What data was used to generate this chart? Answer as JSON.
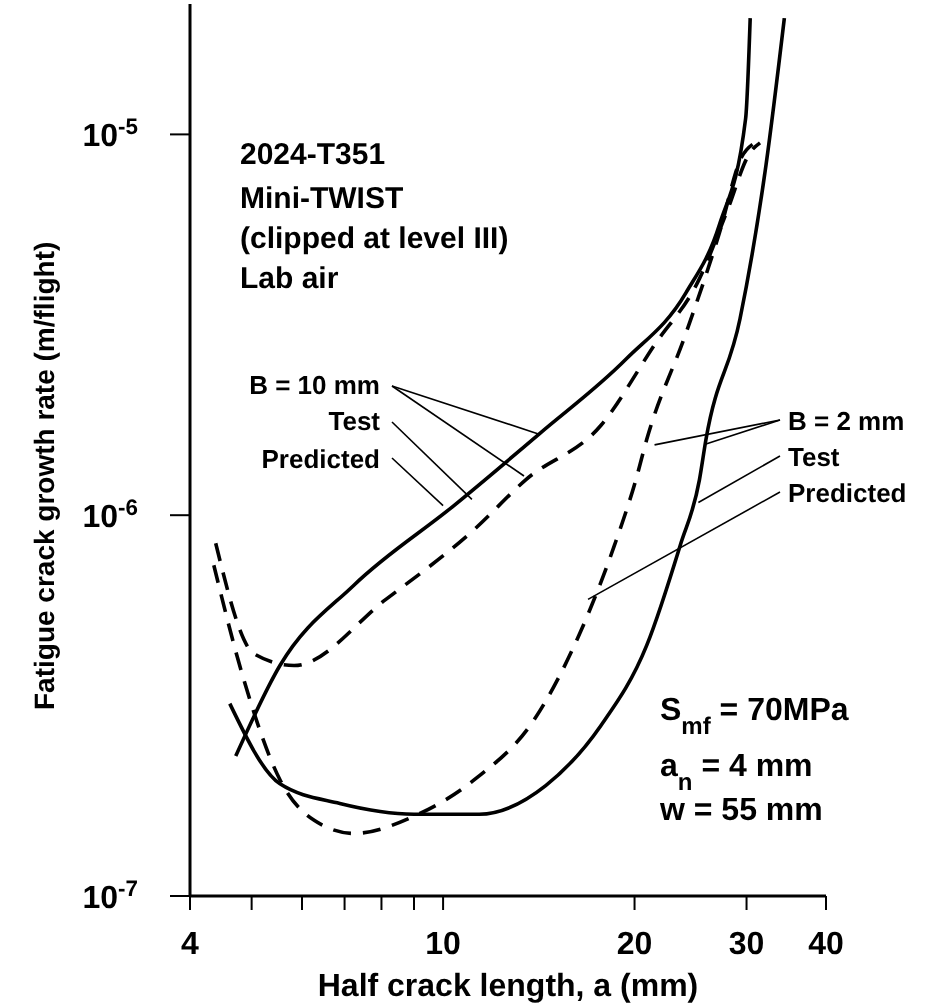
{
  "chart_data": {
    "type": "line",
    "xlabel": "Half crack length, a (mm)",
    "ylabel": "Fatigue crack growth rate (m/flight)",
    "log": "xy",
    "xlim": [
      4,
      40
    ],
    "ylim": [
      1e-07,
      2.2e-05
    ],
    "xticks": [
      4,
      {
        "value": 5,
        "label": null
      },
      {
        "value": 6,
        "label": null
      },
      {
        "value": 7,
        "label": null
      },
      {
        "value": 8,
        "label": null
      },
      {
        "value": 9,
        "label": null
      },
      10,
      20,
      30,
      40
    ],
    "yticks": [
      {
        "value": 1e-07,
        "label": "10$^{-7}$"
      },
      {
        "value": 1e-06,
        "label": "10$^{-6}$"
      },
      {
        "value": 1e-05,
        "label": "10$^{-5}$"
      }
    ],
    "marker": "none",
    "series": [
      {
        "color": "#000000",
        "line_style": "solid",
        "x": [
          4.72,
          5.54,
          7.24,
          10.4,
          14.2,
          19.4,
          24.1,
          27.2,
          29.9,
          30.4
        ],
        "values": [
          2.33e-07,
          4.03e-07,
          6.55e-07,
          1.06e-06,
          1.64e-06,
          2.57e-06,
          3.84e-06,
          5.8e-06,
          1.1e-05,
          2.02e-05
        ]
      },
      {
        "color": "#000000",
        "line_style": "dashed",
        "x": [
          4.39,
          5.04,
          5.83,
          8.13,
          11.2,
          13.5,
          17.7,
          21.5,
          25.3,
          27.9,
          30.4,
          31.5
        ],
        "values": [
          8.44e-07,
          4.33e-07,
          4.03e-07,
          6.01e-07,
          9.18e-07,
          1.24e-06,
          1.72e-06,
          2.8e-06,
          4.18e-06,
          6.23e-06,
          8.97e-06,
          9.5e-06
        ]
      },
      {
        "color": "#000000",
        "line_style": "solid",
        "x": [
          4.62,
          5.54,
          6.88,
          9.0,
          11.4,
          14.5,
          17.7,
          20.9,
          23.6,
          25.3,
          25.9,
          29.3,
          32.2,
          34.4
        ],
        "values": [
          3.2e-07,
          1.97e-07,
          1.75e-07,
          1.64e-07,
          1.64e-07,
          1.95e-07,
          2.8e-07,
          4.55e-07,
          8.34e-07,
          1.24e-06,
          1.58e-06,
          3.28e-06,
          8.34e-06,
          2.02e-05
        ]
      },
      {
        "color": "#000000",
        "line_style": "dashed",
        "x": [
          4.36,
          4.86,
          5.54,
          6.27,
          7.24,
          9.0,
          11.2,
          13.9,
          16.4,
          18.6,
          20.1,
          20.9,
          24.1,
          27.2,
          29.4,
          30.9
        ],
        "values": [
          7.39e-07,
          3.7e-07,
          2.02e-07,
          1.58e-07,
          1.46e-07,
          1.62e-07,
          2.02e-07,
          2.9e-07,
          4.89e-07,
          8.34e-07,
          1.24e-06,
          1.58e-06,
          3.01e-06,
          5.52e-06,
          8.65e-06,
          9.5e-06
        ]
      }
    ],
    "annotations": [
      "2024-T351",
      "Mini-TWIST",
      "(clipped at level III)",
      "Lab air",
      {
        "text": "B = 10 mm",
        "x": 14.2,
        "y": 1.63e-06
      },
      {
        "text": "Test",
        "x": 11.1,
        "y": 1.1e-06
      },
      {
        "text": "Predicted",
        "x": 10.0,
        "y": 1.06e-06
      },
      {
        "text": "B = 2 mm",
        "x": 21.5,
        "y": 1.53e-06
      },
      {
        "text": "Test",
        "x": 25.2,
        "y": 1.08e-06
      },
      {
        "text": "Predicted",
        "x": 16.9,
        "y": 6.01e-07
      },
      "S$_{mf}$ = 70MPa",
      "a$_{n}$ = 4 mm",
      "w = 55 mm"
    ]
  }
}
